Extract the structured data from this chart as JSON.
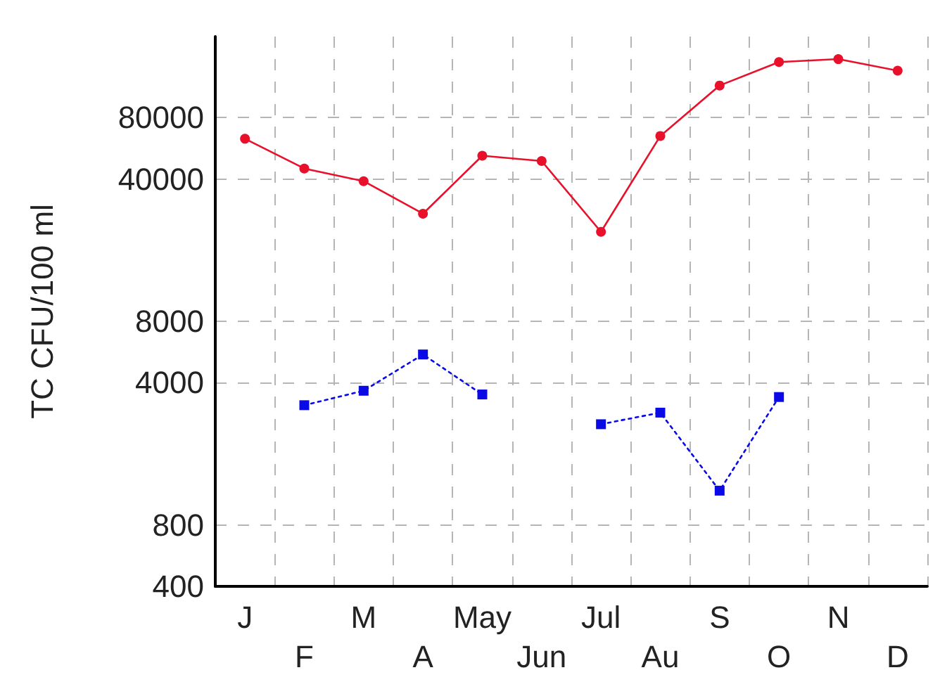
{
  "chart_data": {
    "type": "line",
    "ylabel": "TC CFU/100 ml",
    "categories": [
      "J",
      "F",
      "M",
      "A",
      "May",
      "Jun",
      "Jul",
      "Au",
      "S",
      "O",
      "N",
      "D"
    ],
    "series": [
      {
        "color": "#e8102a",
        "marker": "circle",
        "line_style": "solid",
        "values": [
          63000,
          45000,
          39000,
          27000,
          52000,
          49000,
          22000,
          65000,
          115000,
          150000,
          155000,
          136000
        ]
      },
      {
        "color": "#0a0ae6",
        "marker": "square",
        "line_style": "dotted",
        "values": [
          null,
          3100,
          3650,
          5500,
          3500,
          null,
          2500,
          2850,
          1180,
          3400,
          null,
          null
        ]
      }
    ],
    "log": "y",
    "ylim": [
      400,
      200000
    ],
    "yticks": [
      400,
      800,
      4000,
      8000,
      40000,
      80000
    ],
    "grid": true
  }
}
